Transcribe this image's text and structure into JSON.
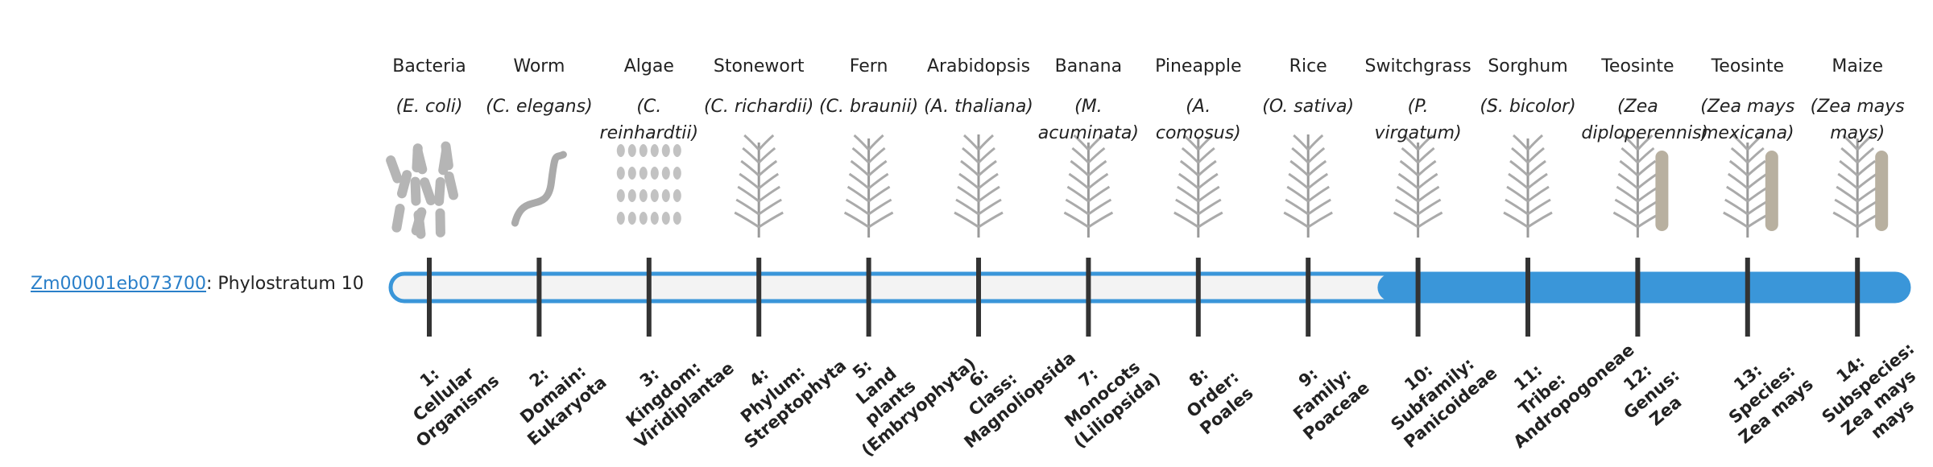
{
  "gene": {
    "id": "Zm00001eb073700",
    "label": ": Phylostratum 10"
  },
  "organisms": [
    {
      "name": "Bacteria",
      "species": "(E. coli)",
      "stratum_number": "1:",
      "stratum_name": "Cellular Organisms"
    },
    {
      "name": "Worm",
      "species": "(C. elegans)",
      "stratum_number": "2:",
      "stratum_name": "Domain: Eukaryota"
    },
    {
      "name": "Algae",
      "species": "(C. reinhardtii)",
      "stratum_number": "3:",
      "stratum_name": "Kingdom: Viridiplantae"
    },
    {
      "name": "Stonewort",
      "species": "(C. richardii)",
      "stratum_number": "4:",
      "stratum_name": "Phylum: Streptophyta"
    },
    {
      "name": "Fern",
      "species": "(C. braunii)",
      "stratum_number": "5:",
      "stratum_name": "Land plants (Embryophyta)"
    },
    {
      "name": "Arabidopsis",
      "species": "(A. thaliana)",
      "stratum_number": "6:",
      "stratum_name": "Class: Magnoliopsida"
    },
    {
      "name": "Banana",
      "species": "(M. acuminata)",
      "stratum_number": "7:",
      "stratum_name": "Monocots (Liliopsida)"
    },
    {
      "name": "Pineapple",
      "species": "(A. comosus)",
      "stratum_number": "8:",
      "stratum_name": "Order: Poales"
    },
    {
      "name": "Rice",
      "species": "(O. sativa)",
      "stratum_number": "9:",
      "stratum_name": "Family: Poaceae"
    },
    {
      "name": "Switchgrass",
      "species": "(P. virgatum)",
      "stratum_number": "10:",
      "stratum_name": "Subfamily: Panicoideae"
    },
    {
      "name": "Sorghum",
      "species": "(S. bicolor)",
      "stratum_number": "11:",
      "stratum_name": "Tribe: Andropogoneae"
    },
    {
      "name": "Teosinte",
      "species": "(Zea diploperennis)",
      "stratum_number": "12:",
      "stratum_name": "Genus: Zea"
    },
    {
      "name": "Teosinte",
      "species": "(Zea mays mexicana)",
      "stratum_number": "13:",
      "stratum_name": "Species: Zea mays"
    },
    {
      "name": "Maize",
      "species": "(Zea mays mays)",
      "stratum_number": "14:",
      "stratum_name": "Subspecies: Zea mays mays"
    }
  ]
}
